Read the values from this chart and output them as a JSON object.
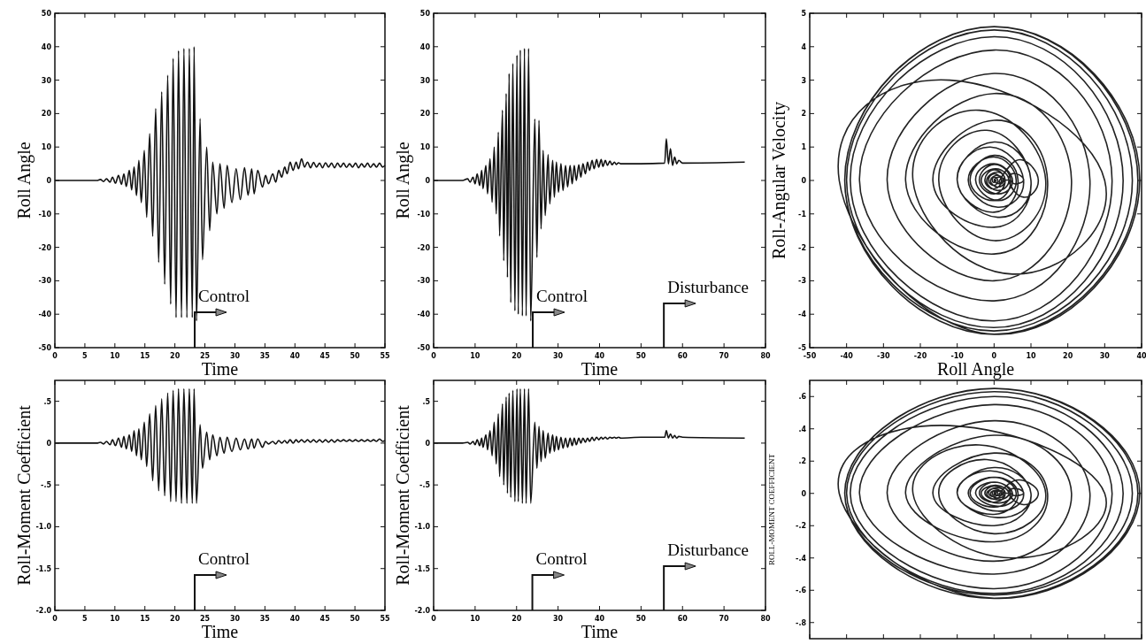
{
  "chart_data": [
    {
      "type": "line",
      "xlabel": "Time",
      "ylabel": "Roll Angle",
      "xlim": [
        0,
        55
      ],
      "ylim": [
        -50,
        50
      ],
      "xticks": [
        0,
        5,
        10,
        15,
        20,
        25,
        30,
        35,
        40,
        45,
        50,
        55
      ],
      "yticks": [
        -50,
        -40,
        -30,
        -20,
        -10,
        0,
        10,
        20,
        30,
        40,
        50
      ],
      "ref_lines": [
        {
          "axis": "x",
          "value": 23.3,
          "label": "Control"
        }
      ],
      "series": [
        {
          "color": "#111111",
          "x": [
            0,
            7,
            7.6,
            8.1,
            8.6,
            9.2,
            9.6,
            10.1,
            10.6,
            11.1,
            11.5,
            11.9,
            12.4,
            12.8,
            13.2,
            13.6,
            14.0,
            14.4,
            14.9,
            15.3,
            15.8,
            16.3,
            16.8,
            17.3,
            17.8,
            18.3,
            18.8,
            19.3,
            19.7,
            20.2,
            20.6,
            21.1,
            21.5,
            22.0,
            22.4,
            22.9,
            23.2,
            23.6,
            24.2,
            24.6,
            25.3,
            25.8,
            26.3,
            27.0,
            27.5,
            28.2,
            28.7,
            29.5,
            30.2,
            30.9,
            31.6,
            32.2,
            32.8,
            33.2,
            33.8,
            34.6,
            35.1,
            35.6,
            36.3,
            36.8,
            37.3,
            37.8,
            38.3,
            38.7,
            39.2,
            39.7,
            40.2,
            40.6,
            41.1,
            41.6,
            42.1,
            42.6,
            43.1,
            43.6,
            44.1,
            44.6,
            45.1,
            45.6,
            46.1,
            46.6,
            47.1,
            47.6,
            48.1,
            48.6,
            49.1,
            49.6,
            50.1,
            50.6,
            51.1,
            51.6,
            52.1,
            52.6,
            53.1,
            53.6,
            54.1,
            54.6,
            55
          ],
          "values": [
            0,
            0,
            0.3,
            -0.3,
            0.5,
            -0.5,
            1,
            -0.8,
            1.5,
            -1.2,
            2,
            -1.8,
            3,
            -2.8,
            4,
            -4.5,
            6,
            -6.6,
            9,
            -11,
            14,
            -16.7,
            21.5,
            -24.5,
            26.5,
            -31,
            31.5,
            -37,
            36.5,
            -41,
            38.8,
            -41,
            39.5,
            -41,
            39.5,
            -41,
            40,
            -42,
            18.5,
            -23.7,
            10,
            -15,
            5.5,
            -10,
            5,
            -8.3,
            4.5,
            -6.6,
            3.5,
            -5.7,
            3.8,
            -4.4,
            3.5,
            -4,
            3,
            -2,
            1.5,
            -1,
            2,
            -0.5,
            3,
            1,
            4,
            2,
            5.5,
            3,
            5.5,
            3.5,
            6.5,
            4,
            5.5,
            3.8,
            5.4,
            4,
            5.2,
            3.8,
            5.3,
            4,
            5.2,
            3.8,
            5.2,
            4,
            5.2,
            3.9,
            5,
            4,
            5.2,
            3.8,
            5,
            4,
            5.2,
            3.9,
            5,
            4,
            5.2,
            4,
            4.5
          ]
        }
      ]
    },
    {
      "type": "line",
      "xlabel": "Time",
      "ylabel": "Roll Angle",
      "xlim": [
        0,
        80
      ],
      "ylim": [
        -50,
        50
      ],
      "xticks": [
        0,
        10,
        20,
        30,
        40,
        50,
        60,
        70,
        80
      ],
      "yticks": [
        -50,
        -40,
        -30,
        -20,
        -10,
        0,
        10,
        20,
        30,
        40,
        50
      ],
      "ref_lines": [
        {
          "axis": "x",
          "value": 23.9,
          "label": "Control"
        },
        {
          "axis": "x",
          "value": 55.5,
          "label": "Disturbance"
        }
      ],
      "series": [
        {
          "color": "#111111",
          "x": [
            0,
            7,
            8.2,
            8.8,
            9.5,
            10,
            10.5,
            11.1,
            11.6,
            11.9,
            12.6,
            13,
            13.6,
            14.1,
            14.6,
            15.1,
            15.6,
            15.9,
            16.6,
            16.9,
            17.5,
            17.8,
            18.2,
            18.6,
            19.1,
            19.6,
            20.1,
            20.4,
            20.9,
            21.4,
            21.9,
            22.3,
            22.9,
            23.4,
            24.4,
            24.9,
            25.4,
            25.9,
            26.4,
            26.9,
            27.6,
            28,
            28.7,
            29.1,
            29.6,
            30.1,
            30.7,
            31.2,
            31.8,
            32.3,
            32.9,
            33.4,
            33.9,
            34.4,
            35,
            35.5,
            36,
            36.6,
            37.1,
            37.6,
            38.2,
            38.7,
            39.3,
            39.8,
            40.4,
            40.8,
            41.4,
            41.9,
            42.5,
            43,
            43.6,
            44,
            44.6,
            45.1,
            50,
            55.7,
            56.1,
            56.6,
            57.1,
            57.6,
            58.1,
            58.6,
            59.1,
            60,
            75
          ],
          "values": [
            0,
            0,
            0.5,
            -0.5,
            1,
            -1,
            2,
            -1.5,
            3,
            -2.5,
            4.5,
            -4,
            6.5,
            -6.5,
            10,
            -10,
            14.5,
            -16.6,
            21,
            -24,
            26,
            -29,
            32,
            -36.5,
            35,
            -39,
            37.5,
            -40,
            39,
            -40.5,
            39.5,
            -40.5,
            39.5,
            -42,
            18.4,
            -23,
            18,
            -14.5,
            9,
            -10.5,
            7.7,
            -7,
            6,
            -5,
            5.5,
            -3.5,
            5,
            -3,
            4.5,
            -2,
            4.5,
            -1,
            4.5,
            0,
            4.7,
            1,
            5,
            2,
            5.5,
            3,
            6,
            3.5,
            6.3,
            4,
            6.3,
            4.2,
            6,
            4.5,
            5.8,
            4.7,
            5.5,
            4.8,
            5.3,
            5,
            5,
            5.2,
            12.5,
            5,
            9.5,
            4.5,
            7,
            5,
            6,
            5.2,
            5.5
          ]
        }
      ]
    },
    {
      "type": "line",
      "xlabel": "Roll Angle",
      "ylabel": "Roll-Angular Velocity",
      "xlim": [
        -50,
        40
      ],
      "ylim": [
        -5,
        5
      ],
      "xticks": [
        -50,
        -40,
        -30,
        -20,
        -10,
        0,
        10,
        20,
        30,
        40
      ],
      "yticks": [
        -5,
        -4,
        -3,
        -2,
        -1,
        0,
        1,
        2,
        3,
        4,
        5
      ],
      "series": [
        {
          "color": "#222222",
          "x": [
            0,
            0.5,
            0,
            -0.5,
            0,
            1,
            0,
            -1.5,
            0,
            2,
            0,
            -2.5,
            0,
            3,
            0,
            -4,
            0,
            4.5,
            0,
            -6.5,
            0,
            6.5,
            0,
            -10,
            0,
            10,
            0,
            -16.6,
            0,
            14.5,
            0,
            -24,
            0,
            21,
            0,
            -29,
            0,
            26,
            0,
            -36.5,
            0,
            32,
            0,
            -39,
            0,
            35,
            0,
            -40,
            0,
            37.5,
            0,
            -40.5,
            0,
            39,
            0,
            -40.5,
            0,
            39.5,
            0,
            -42,
            -12,
            30,
            5,
            -22,
            -4,
            14,
            0,
            -15,
            -2,
            10,
            1,
            -10,
            -1,
            8,
            1,
            -7,
            0,
            6,
            1,
            -5,
            0,
            5,
            1,
            -3.5,
            0.5,
            4,
            1,
            -2,
            1,
            3,
            1,
            -1,
            1,
            2.5,
            1.5,
            0,
            1.5,
            3,
            2,
            1.5,
            4,
            8,
            12,
            8,
            4,
            6,
            8,
            5.5,
            4.5,
            2
          ],
          "values": [
            0,
            0,
            -0.06,
            0,
            0.1,
            0,
            -0.15,
            0,
            0.2,
            0,
            -0.25,
            0,
            0.32,
            0,
            -0.4,
            0,
            0.48,
            0,
            -0.6,
            0,
            0.75,
            0,
            -0.95,
            0,
            1.15,
            0,
            -1.4,
            0,
            1.8,
            0,
            -2.2,
            0,
            2.6,
            0,
            -3.0,
            0,
            3.2,
            0,
            -3.6,
            0,
            3.9,
            0,
            -4.2,
            0,
            4.3,
            0,
            -4.4,
            0,
            4.5,
            0,
            -4.5,
            0,
            4.6,
            0,
            -4.6,
            0,
            4.6,
            0,
            -4.6,
            0,
            3.0,
            0,
            -2.8,
            0,
            2.1,
            0,
            -1.8,
            0,
            1.5,
            0,
            -1.1,
            0,
            1.0,
            0,
            -0.8,
            0,
            0.7,
            0,
            -0.6,
            0,
            0.5,
            0,
            -0.4,
            0,
            0.35,
            0,
            -0.3,
            0,
            0.25,
            0,
            -0.2,
            0,
            0.15,
            0,
            -0.1,
            0,
            0.1,
            0,
            -0.05,
            0,
            0.4,
            0.6,
            0,
            -0.5,
            0,
            0.2,
            0,
            -0.1,
            0,
            0
          ]
        }
      ]
    },
    {
      "type": "line",
      "xlabel": "Time",
      "ylabel": "Roll-Moment Coefficient",
      "xlim": [
        0,
        55
      ],
      "ylim": [
        -2,
        0.75
      ],
      "xticks": [
        0,
        5,
        10,
        15,
        20,
        25,
        30,
        35,
        40,
        45,
        50,
        55
      ],
      "yticks": [
        {
          "value": -2,
          "label": "-2.0"
        },
        {
          "value": -1.5,
          "label": "-1.5"
        },
        {
          "value": -1,
          "label": "-1.0"
        },
        {
          "value": -0.5,
          "label": "-.5"
        },
        0,
        {
          "value": 0.5,
          "label": ".5"
        }
      ],
      "ref_lines": [
        {
          "axis": "x",
          "value": 23.3,
          "label": "Control"
        }
      ],
      "series": [
        {
          "color": "#111111",
          "x": [
            0,
            7,
            7.6,
            8.1,
            8.6,
            9.2,
            9.6,
            10.1,
            10.6,
            11.1,
            11.5,
            11.9,
            12.4,
            12.8,
            13.2,
            13.6,
            14.0,
            14.4,
            14.9,
            15.3,
            15.8,
            16.3,
            16.8,
            17.3,
            17.8,
            18.3,
            18.8,
            19.3,
            19.7,
            20.2,
            20.6,
            21.1,
            21.5,
            22.0,
            22.4,
            22.9,
            23.2,
            23.6,
            24.2,
            24.6,
            25.3,
            25.8,
            26.3,
            27.0,
            27.5,
            28.2,
            28.7,
            29.5,
            30.2,
            30.9,
            31.6,
            32.2,
            32.8,
            33.2,
            33.8,
            34.6,
            35.1,
            35.6,
            36.3,
            36.8,
            37.3,
            37.8,
            38.3,
            38.7,
            39.2,
            39.7,
            40.2,
            40.6,
            41.1,
            41.6,
            42.1,
            42.6,
            43.1,
            43.6,
            44.1,
            44.6,
            45.1,
            45.6,
            46.1,
            46.6,
            47.1,
            47.6,
            48.1,
            48.6,
            49.1,
            49.6,
            50.1,
            50.6,
            51.1,
            51.6,
            52.1,
            52.6,
            53.1,
            53.6,
            54.1,
            54.6,
            55
          ],
          "values": [
            0,
            0,
            0.01,
            -0.01,
            0.02,
            -0.02,
            0.04,
            -0.03,
            0.06,
            -0.05,
            0.08,
            -0.07,
            0.1,
            -0.1,
            0.15,
            -0.15,
            0.17,
            -0.2,
            0.25,
            -0.28,
            0.35,
            -0.45,
            0.45,
            -0.57,
            0.53,
            -0.63,
            0.6,
            -0.7,
            0.63,
            -0.7,
            0.65,
            -0.72,
            0.65,
            -0.72,
            0.65,
            -0.72,
            0.65,
            -0.72,
            0.22,
            -0.3,
            0.13,
            -0.2,
            0.1,
            -0.15,
            0.07,
            -0.12,
            0.07,
            -0.1,
            0.06,
            -0.08,
            0.05,
            -0.07,
            0.05,
            -0.06,
            0.05,
            -0.05,
            0.02,
            -0.01,
            0.02,
            -0.01,
            0.03,
            0,
            0.03,
            0,
            0.04,
            0,
            0.04,
            0.01,
            0.04,
            0.01,
            0.04,
            0.01,
            0.04,
            0.01,
            0.04,
            0.01,
            0.04,
            0.01,
            0.04,
            0.01,
            0.04,
            0.02,
            0.04,
            0.02,
            0.04,
            0.02,
            0.04,
            0.02,
            0.04,
            0.02,
            0.04,
            0.02,
            0.04,
            0.02,
            0.05,
            0.02,
            0.03
          ]
        }
      ]
    },
    {
      "type": "line",
      "xlabel": "Time",
      "ylabel": "Roll-Moment Coefficient",
      "xlim": [
        0,
        80
      ],
      "ylim": [
        -2,
        0.75
      ],
      "xticks": [
        0,
        10,
        20,
        30,
        40,
        50,
        60,
        70,
        80
      ],
      "yticks": [
        {
          "value": -2,
          "label": "-2.0"
        },
        {
          "value": -1.5,
          "label": "-1.5"
        },
        {
          "value": -1,
          "label": "-1.0"
        },
        {
          "value": -0.5,
          "label": "-.5"
        },
        0,
        {
          "value": 0.5,
          "label": ".5"
        }
      ],
      "ref_lines": [
        {
          "axis": "x",
          "value": 23.8,
          "label": "Control"
        },
        {
          "axis": "x",
          "value": 55.5,
          "label": "Disturbance"
        }
      ],
      "series": [
        {
          "color": "#111111",
          "x": [
            0,
            7,
            8.2,
            8.8,
            9.5,
            10,
            10.5,
            11.1,
            11.6,
            11.9,
            12.6,
            13,
            13.6,
            14.1,
            14.6,
            15.1,
            15.6,
            15.9,
            16.6,
            16.9,
            17.5,
            17.8,
            18.2,
            18.6,
            19.1,
            19.6,
            20.1,
            20.4,
            20.9,
            21.4,
            21.9,
            22.3,
            22.9,
            23.4,
            24.4,
            24.9,
            25.4,
            25.9,
            26.4,
            26.9,
            27.6,
            28,
            28.7,
            29.1,
            29.6,
            30.1,
            30.7,
            31.2,
            31.8,
            32.3,
            32.9,
            33.4,
            33.9,
            34.4,
            35,
            35.5,
            36,
            36.6,
            37.1,
            37.6,
            38.2,
            38.7,
            39.3,
            39.8,
            40.4,
            40.8,
            41.4,
            41.9,
            42.5,
            43,
            43.6,
            44,
            44.6,
            45.1,
            50,
            55.7,
            56.1,
            56.6,
            57.1,
            57.6,
            58.1,
            58.6,
            59.1,
            60,
            75
          ],
          "values": [
            0,
            0,
            0.01,
            -0.01,
            0.02,
            -0.02,
            0.04,
            -0.03,
            0.06,
            -0.05,
            0.1,
            -0.08,
            0.15,
            -0.15,
            0.25,
            -0.25,
            0.35,
            -0.4,
            0.47,
            -0.5,
            0.55,
            -0.6,
            0.6,
            -0.65,
            0.63,
            -0.7,
            0.65,
            -0.7,
            0.65,
            -0.72,
            0.65,
            -0.72,
            0.65,
            -0.72,
            0.25,
            -0.3,
            0.2,
            -0.22,
            0.15,
            -0.18,
            0.12,
            -0.12,
            0.1,
            -0.1,
            0.08,
            -0.08,
            0.07,
            -0.06,
            0.06,
            -0.05,
            0.06,
            -0.03,
            0.06,
            -0.02,
            0.06,
            0,
            0.06,
            0.01,
            0.06,
            0.02,
            0.07,
            0.03,
            0.07,
            0.04,
            0.07,
            0.05,
            0.07,
            0.05,
            0.07,
            0.06,
            0.07,
            0.06,
            0.07,
            0.06,
            0.07,
            0.07,
            0.15,
            0.06,
            0.11,
            0.06,
            0.09,
            0.06,
            0.08,
            0.07,
            0.06
          ]
        }
      ]
    },
    {
      "type": "line",
      "ylabel": "ROLL-MOMENT COEFFICIENT",
      "xlim": [
        -50,
        40
      ],
      "ylim": [
        -0.9,
        0.7
      ],
      "xticks": [
        -50,
        -40,
        -30,
        -20,
        -10,
        0,
        10,
        20,
        30,
        40
      ],
      "yticks": [
        {
          "value": -0.8,
          "label": "-.8"
        },
        {
          "value": -0.6,
          "label": "-.6"
        },
        {
          "value": -0.4,
          "label": "-.4"
        },
        {
          "value": -0.2,
          "label": "-.2"
        },
        0,
        {
          "value": 0.2,
          "label": ".2"
        },
        {
          "value": 0.4,
          "label": ".4"
        },
        {
          "value": 0.6,
          "label": ".6"
        }
      ],
      "tick_labels": "y",
      "series": [
        {
          "color": "#222222",
          "x": [
            0,
            0.5,
            0,
            -0.5,
            0,
            1,
            0,
            -1.5,
            0,
            2,
            0,
            -2.5,
            0,
            3,
            0,
            -4,
            0,
            4.5,
            0,
            -6.5,
            0,
            6.5,
            0,
            -10,
            0,
            10,
            0,
            -16.6,
            0,
            14.5,
            0,
            -24,
            0,
            21,
            0,
            -29,
            0,
            26,
            0,
            -36.5,
            0,
            32,
            0,
            -39,
            0,
            35,
            0,
            -40,
            0,
            37.5,
            0,
            -40.5,
            0,
            39,
            0,
            -40.5,
            0,
            39.5,
            0,
            -42,
            -12,
            30,
            5,
            -22,
            -4,
            14,
            0,
            -15,
            -2,
            10,
            1,
            -10,
            -1,
            8,
            1,
            -7,
            0,
            6,
            1,
            -5,
            0,
            5,
            1,
            -3.5,
            0.5,
            4,
            1,
            -2,
            1,
            3,
            1,
            -1,
            1,
            2.5,
            1.5,
            0,
            1.5,
            3,
            2,
            1.5,
            4,
            8,
            12,
            8,
            4,
            6,
            8,
            5.5,
            4.5,
            2
          ],
          "values": [
            0,
            0,
            -0.01,
            0,
            0.014,
            0,
            -0.02,
            0,
            0.03,
            0,
            -0.035,
            0,
            0.045,
            0,
            -0.055,
            0,
            0.07,
            0,
            -0.085,
            0,
            0.1,
            0,
            -0.13,
            0,
            0.16,
            0,
            -0.2,
            0,
            0.25,
            0,
            -0.3,
            0,
            0.36,
            0,
            -0.42,
            0,
            0.45,
            0,
            -0.5,
            0,
            0.55,
            0,
            -0.59,
            0,
            0.6,
            0,
            -0.62,
            0,
            0.63,
            0,
            -0.63,
            0,
            0.65,
            0,
            -0.65,
            0,
            0.65,
            0,
            -0.65,
            0,
            0.42,
            0,
            -0.4,
            0,
            0.3,
            0,
            -0.25,
            0,
            0.21,
            0,
            -0.15,
            0,
            0.14,
            0,
            -0.11,
            0,
            0.1,
            0,
            -0.08,
            0,
            0.07,
            0,
            -0.06,
            0,
            0.05,
            0,
            -0.04,
            0,
            0.035,
            0,
            -0.03,
            0,
            0.02,
            0,
            -0.014,
            0,
            0.014,
            0,
            -0.007,
            0,
            0.06,
            0.08,
            0,
            -0.07,
            0,
            0.03,
            0,
            -0.014,
            0,
            0
          ]
        }
      ]
    }
  ]
}
